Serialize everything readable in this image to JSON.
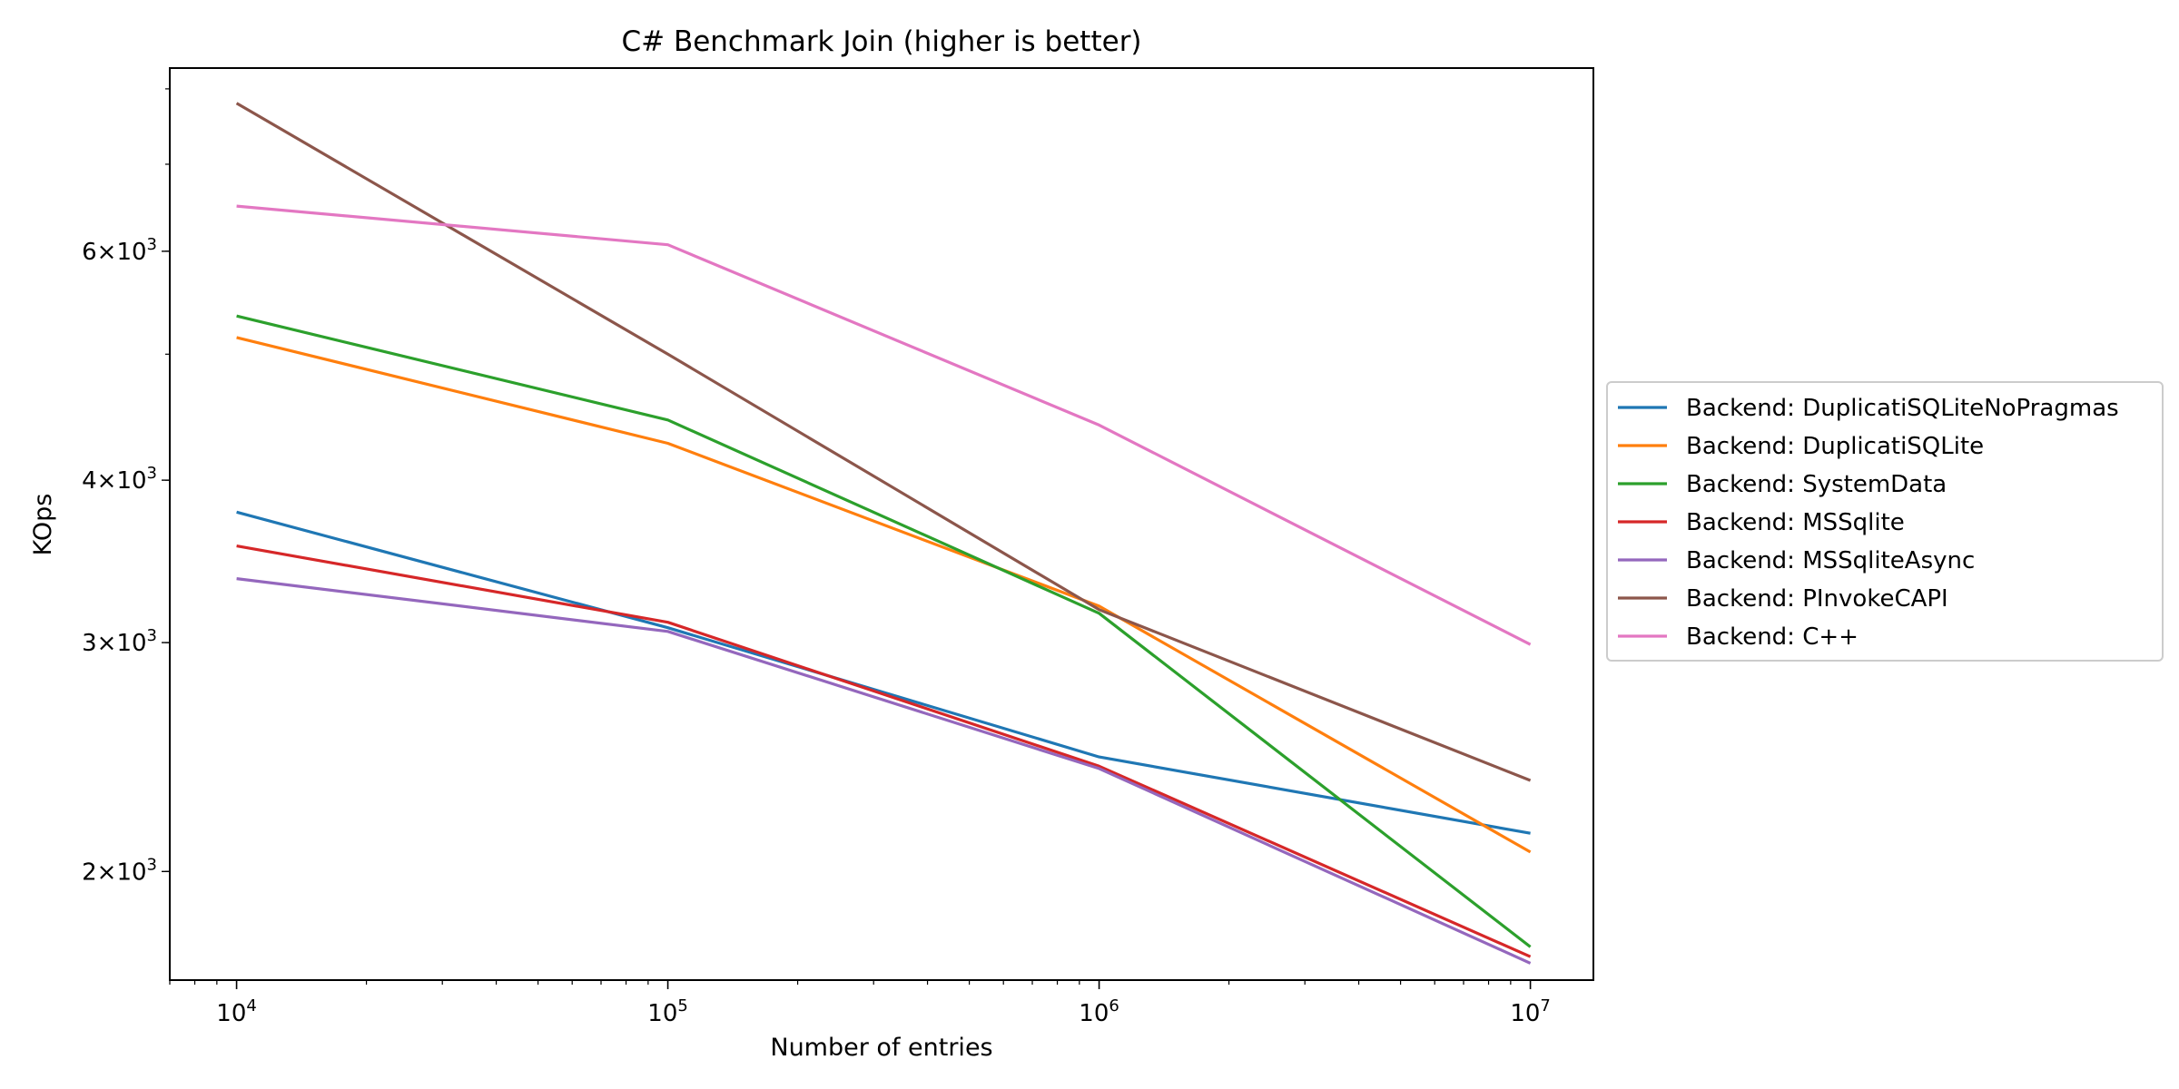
{
  "chart_data": {
    "type": "line",
    "title": "C# Benchmark Join (higher is better)",
    "xlabel": "Number of entries",
    "ylabel": "KOps",
    "x_scale": "log",
    "y_scale": "log",
    "x": [
      10000,
      100000,
      1000000,
      10000000
    ],
    "x_tick_labels": [
      {
        "base": "10",
        "exp": "4"
      },
      {
        "base": "10",
        "exp": "5"
      },
      {
        "base": "10",
        "exp": "6"
      },
      {
        "base": "10",
        "exp": "7"
      }
    ],
    "y_tick_labels": [
      {
        "value": 2000,
        "mant": "2",
        "base": "10",
        "exp": "3"
      },
      {
        "value": 3000,
        "mant": "3",
        "base": "10",
        "exp": "3"
      },
      {
        "value": 4000,
        "mant": "4",
        "base": "10",
        "exp": "3"
      },
      {
        "value": 6000,
        "mant": "6",
        "base": "10",
        "exp": "3"
      }
    ],
    "xlim": [
      7000,
      14000000
    ],
    "ylim": [
      1650,
      8300
    ],
    "grid": false,
    "legend_position": "outside right, center",
    "series": [
      {
        "name": "Backend: DuplicatiSQLiteNoPragmas",
        "color": "#1f77b4",
        "values": [
          3780,
          3080,
          2450,
          2140
        ]
      },
      {
        "name": "Backend: DuplicatiSQLite",
        "color": "#ff7f0e",
        "values": [
          5150,
          4270,
          3200,
          2070
        ]
      },
      {
        "name": "Backend: SystemData",
        "color": "#2ca02c",
        "values": [
          5350,
          4450,
          3160,
          1750
        ]
      },
      {
        "name": "Backend: MSSqlite",
        "color": "#d62728",
        "values": [
          3560,
          3110,
          2410,
          1720
        ]
      },
      {
        "name": "Backend: MSSqliteAsync",
        "color": "#9467bd",
        "values": [
          3360,
          3060,
          2400,
          1700
        ]
      },
      {
        "name": "Backend: PInvokeCAPI",
        "color": "#8c564b",
        "values": [
          7800,
          5000,
          3180,
          2350
        ]
      },
      {
        "name": "Backend: C++",
        "color": "#e377c2",
        "values": [
          6500,
          6070,
          4410,
          2990
        ]
      }
    ]
  }
}
